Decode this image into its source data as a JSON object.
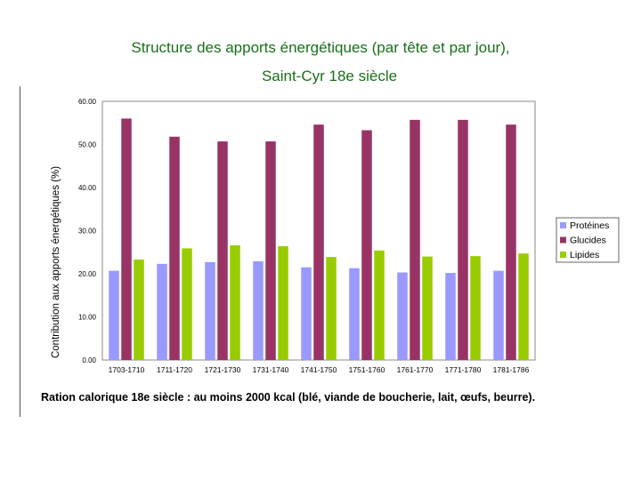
{
  "title_line1": "Structure des apports énergétiques (par tête et par jour),",
  "title_line2": "Saint-Cyr 18e siècle",
  "caption": "Ration calorique 18e siècle : au moins 2000 kcal (blé, viande de boucherie, lait, œufs, beurre).",
  "colors": {
    "proteines": "#9999ff",
    "glucides": "#993366",
    "lipides": "#99cc00"
  },
  "chart_data": {
    "type": "bar",
    "title": "Structure des apports énergétiques (par tête et par jour), Saint-Cyr 18e siècle",
    "xlabel": "",
    "ylabel": "Contribution aux apports énergétiques (%)",
    "ylim": [
      0,
      60
    ],
    "yticks": [
      "0.00",
      "10.00",
      "20.00",
      "30.00",
      "40.00",
      "50.00",
      "60.00"
    ],
    "grid": false,
    "legend_position": "right",
    "categories": [
      "1703-1710",
      "1711-1720",
      "1721-1730",
      "1731-1740",
      "1741-1750",
      "1751-1760",
      "1761-1770",
      "1771-1780",
      "1781-1786"
    ],
    "series": [
      {
        "name": "Protéines",
        "values": [
          20.7,
          22.3,
          22.7,
          22.9,
          21.5,
          21.3,
          20.3,
          20.2,
          20.7
        ]
      },
      {
        "name": "Glucides",
        "values": [
          56.0,
          51.8,
          50.7,
          50.7,
          54.6,
          53.3,
          55.7,
          55.7,
          54.6
        ]
      },
      {
        "name": "Lipides",
        "values": [
          23.3,
          25.9,
          26.6,
          26.4,
          23.9,
          25.4,
          24.0,
          24.1,
          24.7
        ]
      }
    ]
  }
}
